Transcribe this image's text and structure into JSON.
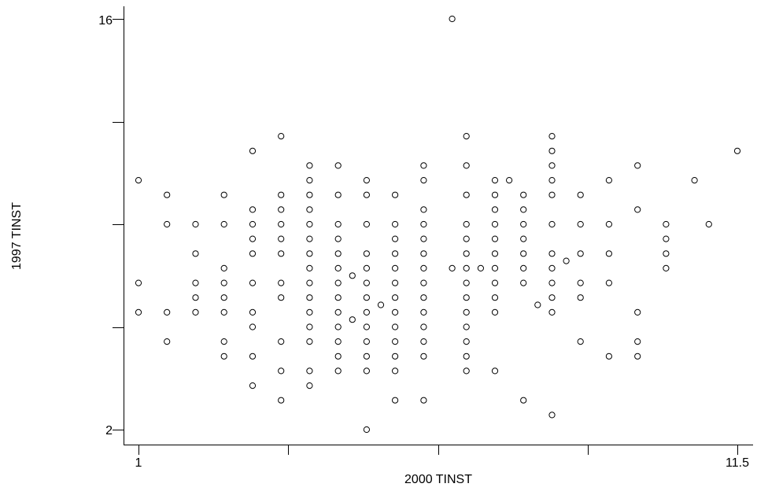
{
  "chart_data": {
    "type": "scatter",
    "title": "",
    "xlabel": "2000 TINST",
    "ylabel": "1997 TINST",
    "xlim": [
      1,
      11.5
    ],
    "ylim": [
      2,
      16
    ],
    "x_tick_labels": [
      "1",
      "11.5"
    ],
    "y_tick_labels": [
      "2",
      "16"
    ],
    "grid": false,
    "marker": "open-circle",
    "points": [
      {
        "x": 1.0,
        "y": 10.5
      },
      {
        "x": 1.0,
        "y": 7.0
      },
      {
        "x": 1.0,
        "y": 6.0
      },
      {
        "x": 1.5,
        "y": 10.0
      },
      {
        "x": 1.5,
        "y": 9.0
      },
      {
        "x": 1.5,
        "y": 6.0
      },
      {
        "x": 1.5,
        "y": 5.0
      },
      {
        "x": 2.0,
        "y": 9.0
      },
      {
        "x": 2.0,
        "y": 8.0
      },
      {
        "x": 2.0,
        "y": 7.0
      },
      {
        "x": 2.0,
        "y": 6.5
      },
      {
        "x": 2.0,
        "y": 6.0
      },
      {
        "x": 2.5,
        "y": 10.0
      },
      {
        "x": 2.5,
        "y": 9.0
      },
      {
        "x": 2.5,
        "y": 7.5
      },
      {
        "x": 2.5,
        "y": 7.0
      },
      {
        "x": 2.5,
        "y": 6.5
      },
      {
        "x": 2.5,
        "y": 6.0
      },
      {
        "x": 2.5,
        "y": 5.0
      },
      {
        "x": 2.5,
        "y": 4.5
      },
      {
        "x": 3.0,
        "y": 11.5
      },
      {
        "x": 3.0,
        "y": 9.5
      },
      {
        "x": 3.0,
        "y": 9.0
      },
      {
        "x": 3.0,
        "y": 8.5
      },
      {
        "x": 3.0,
        "y": 8.0
      },
      {
        "x": 3.0,
        "y": 7.0
      },
      {
        "x": 3.0,
        "y": 6.0
      },
      {
        "x": 3.0,
        "y": 5.5
      },
      {
        "x": 3.0,
        "y": 4.5
      },
      {
        "x": 3.0,
        "y": 3.5
      },
      {
        "x": 3.5,
        "y": 12.0
      },
      {
        "x": 3.5,
        "y": 10.0
      },
      {
        "x": 3.5,
        "y": 9.5
      },
      {
        "x": 3.5,
        "y": 9.0
      },
      {
        "x": 3.5,
        "y": 8.5
      },
      {
        "x": 3.5,
        "y": 8.0
      },
      {
        "x": 3.5,
        "y": 7.0
      },
      {
        "x": 3.5,
        "y": 6.5
      },
      {
        "x": 3.5,
        "y": 5.0
      },
      {
        "x": 3.5,
        "y": 4.0
      },
      {
        "x": 3.5,
        "y": 3.0
      },
      {
        "x": 4.0,
        "y": 11.0
      },
      {
        "x": 4.0,
        "y": 10.5
      },
      {
        "x": 4.0,
        "y": 10.0
      },
      {
        "x": 4.0,
        "y": 9.5
      },
      {
        "x": 4.0,
        "y": 9.0
      },
      {
        "x": 4.0,
        "y": 8.5
      },
      {
        "x": 4.0,
        "y": 8.0
      },
      {
        "x": 4.0,
        "y": 7.5
      },
      {
        "x": 4.0,
        "y": 7.0
      },
      {
        "x": 4.0,
        "y": 6.5
      },
      {
        "x": 4.0,
        "y": 6.0
      },
      {
        "x": 4.0,
        "y": 5.5
      },
      {
        "x": 4.0,
        "y": 5.0
      },
      {
        "x": 4.0,
        "y": 4.0
      },
      {
        "x": 4.0,
        "y": 3.5
      },
      {
        "x": 4.5,
        "y": 11.0
      },
      {
        "x": 4.5,
        "y": 10.0
      },
      {
        "x": 4.5,
        "y": 9.0
      },
      {
        "x": 4.5,
        "y": 8.5
      },
      {
        "x": 4.5,
        "y": 8.0
      },
      {
        "x": 4.5,
        "y": 7.5
      },
      {
        "x": 4.5,
        "y": 7.0
      },
      {
        "x": 4.5,
        "y": 6.5
      },
      {
        "x": 4.5,
        "y": 6.0
      },
      {
        "x": 4.5,
        "y": 5.5
      },
      {
        "x": 4.5,
        "y": 5.0
      },
      {
        "x": 4.5,
        "y": 4.5
      },
      {
        "x": 4.5,
        "y": 4.0
      },
      {
        "x": 4.75,
        "y": 7.25
      },
      {
        "x": 4.75,
        "y": 5.75
      },
      {
        "x": 5.0,
        "y": 10.5
      },
      {
        "x": 5.0,
        "y": 10.0
      },
      {
        "x": 5.0,
        "y": 9.0
      },
      {
        "x": 5.0,
        "y": 8.0
      },
      {
        "x": 5.0,
        "y": 7.5
      },
      {
        "x": 5.0,
        "y": 7.0
      },
      {
        "x": 5.0,
        "y": 6.5
      },
      {
        "x": 5.0,
        "y": 6.0
      },
      {
        "x": 5.0,
        "y": 5.5
      },
      {
        "x": 5.0,
        "y": 5.0
      },
      {
        "x": 5.0,
        "y": 4.5
      },
      {
        "x": 5.0,
        "y": 4.0
      },
      {
        "x": 5.0,
        "y": 2.0
      },
      {
        "x": 5.25,
        "y": 6.25
      },
      {
        "x": 5.5,
        "y": 10.0
      },
      {
        "x": 5.5,
        "y": 9.0
      },
      {
        "x": 5.5,
        "y": 8.5
      },
      {
        "x": 5.5,
        "y": 8.0
      },
      {
        "x": 5.5,
        "y": 7.5
      },
      {
        "x": 5.5,
        "y": 7.0
      },
      {
        "x": 5.5,
        "y": 6.5
      },
      {
        "x": 5.5,
        "y": 6.0
      },
      {
        "x": 5.5,
        "y": 5.5
      },
      {
        "x": 5.5,
        "y": 5.0
      },
      {
        "x": 5.5,
        "y": 4.5
      },
      {
        "x": 5.5,
        "y": 4.0
      },
      {
        "x": 5.5,
        "y": 3.0
      },
      {
        "x": 6.0,
        "y": 11.0
      },
      {
        "x": 6.0,
        "y": 10.5
      },
      {
        "x": 6.0,
        "y": 9.5
      },
      {
        "x": 6.0,
        "y": 9.0
      },
      {
        "x": 6.0,
        "y": 8.5
      },
      {
        "x": 6.0,
        "y": 8.0
      },
      {
        "x": 6.0,
        "y": 7.5
      },
      {
        "x": 6.0,
        "y": 7.0
      },
      {
        "x": 6.0,
        "y": 6.5
      },
      {
        "x": 6.0,
        "y": 6.0
      },
      {
        "x": 6.0,
        "y": 5.5
      },
      {
        "x": 6.0,
        "y": 5.0
      },
      {
        "x": 6.0,
        "y": 4.5
      },
      {
        "x": 6.0,
        "y": 3.0
      },
      {
        "x": 6.5,
        "y": 16.0
      },
      {
        "x": 6.5,
        "y": 7.5
      },
      {
        "x": 6.75,
        "y": 12.0
      },
      {
        "x": 6.75,
        "y": 11.0
      },
      {
        "x": 6.75,
        "y": 10.0
      },
      {
        "x": 6.75,
        "y": 9.0
      },
      {
        "x": 6.75,
        "y": 8.5
      },
      {
        "x": 6.75,
        "y": 8.0
      },
      {
        "x": 6.75,
        "y": 7.5
      },
      {
        "x": 6.75,
        "y": 7.0
      },
      {
        "x": 6.75,
        "y": 6.5
      },
      {
        "x": 6.75,
        "y": 6.0
      },
      {
        "x": 6.75,
        "y": 5.5
      },
      {
        "x": 6.75,
        "y": 5.0
      },
      {
        "x": 6.75,
        "y": 4.5
      },
      {
        "x": 6.75,
        "y": 4.0
      },
      {
        "x": 7.0,
        "y": 7.5
      },
      {
        "x": 7.25,
        "y": 10.5
      },
      {
        "x": 7.25,
        "y": 10.0
      },
      {
        "x": 7.25,
        "y": 9.5
      },
      {
        "x": 7.25,
        "y": 9.0
      },
      {
        "x": 7.25,
        "y": 8.5
      },
      {
        "x": 7.25,
        "y": 8.0
      },
      {
        "x": 7.25,
        "y": 7.5
      },
      {
        "x": 7.25,
        "y": 7.0
      },
      {
        "x": 7.25,
        "y": 6.5
      },
      {
        "x": 7.25,
        "y": 6.0
      },
      {
        "x": 7.25,
        "y": 4.0
      },
      {
        "x": 7.5,
        "y": 10.5
      },
      {
        "x": 7.75,
        "y": 10.0
      },
      {
        "x": 7.75,
        "y": 9.5
      },
      {
        "x": 7.75,
        "y": 9.0
      },
      {
        "x": 7.75,
        "y": 8.5
      },
      {
        "x": 7.75,
        "y": 8.0
      },
      {
        "x": 7.75,
        "y": 7.5
      },
      {
        "x": 7.75,
        "y": 7.0
      },
      {
        "x": 7.75,
        "y": 3.0
      },
      {
        "x": 8.0,
        "y": 6.25
      },
      {
        "x": 8.25,
        "y": 12.0
      },
      {
        "x": 8.25,
        "y": 11.5
      },
      {
        "x": 8.25,
        "y": 11.0
      },
      {
        "x": 8.25,
        "y": 10.5
      },
      {
        "x": 8.25,
        "y": 10.0
      },
      {
        "x": 8.25,
        "y": 9.0
      },
      {
        "x": 8.25,
        "y": 8.0
      },
      {
        "x": 8.25,
        "y": 7.5
      },
      {
        "x": 8.25,
        "y": 7.0
      },
      {
        "x": 8.25,
        "y": 6.5
      },
      {
        "x": 8.25,
        "y": 6.0
      },
      {
        "x": 8.25,
        "y": 2.5
      },
      {
        "x": 8.5,
        "y": 7.75
      },
      {
        "x": 8.75,
        "y": 10.0
      },
      {
        "x": 8.75,
        "y": 9.0
      },
      {
        "x": 8.75,
        "y": 8.0
      },
      {
        "x": 8.75,
        "y": 7.0
      },
      {
        "x": 8.75,
        "y": 6.5
      },
      {
        "x": 8.75,
        "y": 5.0
      },
      {
        "x": 9.25,
        "y": 10.5
      },
      {
        "x": 9.25,
        "y": 9.0
      },
      {
        "x": 9.25,
        "y": 8.0
      },
      {
        "x": 9.25,
        "y": 7.0
      },
      {
        "x": 9.25,
        "y": 4.5
      },
      {
        "x": 9.75,
        "y": 11.0
      },
      {
        "x": 9.75,
        "y": 9.5
      },
      {
        "x": 9.75,
        "y": 6.0
      },
      {
        "x": 9.75,
        "y": 5.0
      },
      {
        "x": 9.75,
        "y": 4.5
      },
      {
        "x": 10.25,
        "y": 9.0
      },
      {
        "x": 10.25,
        "y": 8.5
      },
      {
        "x": 10.25,
        "y": 8.0
      },
      {
        "x": 10.25,
        "y": 7.5
      },
      {
        "x": 10.75,
        "y": 10.5
      },
      {
        "x": 11.0,
        "y": 9.0
      },
      {
        "x": 11.5,
        "y": 11.5
      }
    ]
  }
}
